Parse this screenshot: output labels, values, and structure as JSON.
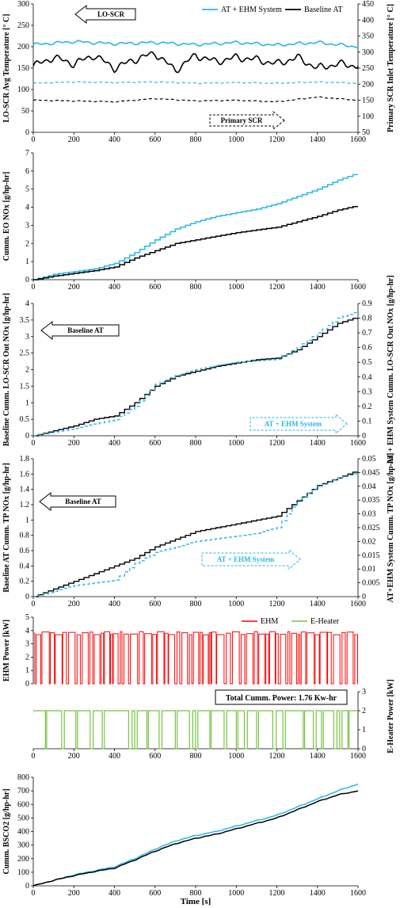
{
  "colors": {
    "cyan": "#29b6e6",
    "black": "#000000",
    "red": "#ff0000",
    "green": "#76c442"
  },
  "chart_data": [
    {
      "type": "line",
      "x_ticks": [
        0,
        200,
        400,
        600,
        800,
        1000,
        1200,
        1400,
        1600
      ],
      "y_ticks": [
        0,
        50,
        100,
        150,
        200,
        250,
        300
      ],
      "y2_ticks": [
        50,
        100,
        150,
        200,
        250,
        300,
        350,
        400,
        450
      ],
      "ylim": [
        0,
        300
      ],
      "y2lim": [
        50,
        450
      ],
      "xlim": [
        0,
        1600
      ],
      "ylabel": "LO-SCR Avg Temperature [° C]",
      "y2label": "Primary SCR Inlet Temperature [° C]",
      "legend": [
        "AT + EHM System",
        "Baseline AT"
      ],
      "annotations": [
        "LO-SCR",
        "Primary SCR"
      ],
      "series": [
        {
          "name": "AT + EHM System",
          "axis": "left",
          "style": "solid",
          "color": "cyan",
          "x": [
            0,
            200,
            400,
            600,
            800,
            1000,
            1200,
            1400,
            1600
          ],
          "y": [
            205,
            212,
            207,
            210,
            205,
            210,
            204,
            210,
            200
          ]
        },
        {
          "name": "Baseline AT",
          "axis": "left",
          "style": "solid",
          "color": "black",
          "x": [
            0,
            100,
            200,
            300,
            400,
            500,
            600,
            700,
            800,
            900,
            1000,
            1100,
            1200,
            1300,
            1400,
            1500,
            1600
          ],
          "y": [
            155,
            175,
            160,
            180,
            150,
            170,
            185,
            145,
            180,
            165,
            175,
            170,
            160,
            175,
            150,
            160,
            155
          ]
        },
        {
          "name": "AT + EHM System",
          "axis": "right",
          "style": "dashed",
          "color": "cyan",
          "x": [
            0,
            200,
            400,
            600,
            800,
            1000,
            1200,
            1400,
            1600
          ],
          "y": [
            203,
            207,
            205,
            207,
            203,
            205,
            203,
            207,
            203
          ]
        },
        {
          "name": "Baseline AT",
          "axis": "right",
          "style": "dashed",
          "color": "black",
          "x": [
            0,
            200,
            400,
            600,
            800,
            1000,
            1200,
            1400,
            1600
          ],
          "y": [
            150,
            148,
            145,
            155,
            148,
            150,
            145,
            160,
            150
          ]
        }
      ]
    },
    {
      "type": "line",
      "x_ticks": [
        0,
        200,
        400,
        600,
        800,
        1000,
        1200,
        1400,
        1600
      ],
      "y_ticks": [
        0,
        1,
        2,
        3,
        4,
        5,
        6,
        7
      ],
      "ylim": [
        0,
        7
      ],
      "xlim": [
        0,
        1600
      ],
      "ylabel": "Cumm. EO NOx [g/hp-hr]",
      "series": [
        {
          "color": "cyan",
          "x": [
            0,
            100,
            200,
            300,
            400,
            500,
            600,
            700,
            800,
            900,
            1000,
            1100,
            1200,
            1300,
            1400,
            1500,
            1600
          ],
          "y": [
            0,
            0.3,
            0.45,
            0.6,
            0.9,
            1.5,
            2.2,
            2.8,
            3.2,
            3.5,
            3.7,
            3.9,
            4.2,
            4.6,
            5.0,
            5.5,
            5.9
          ]
        },
        {
          "color": "black",
          "x": [
            0,
            100,
            200,
            300,
            400,
            500,
            600,
            700,
            800,
            900,
            1000,
            1100,
            1200,
            1300,
            1400,
            1500,
            1600
          ],
          "y": [
            0,
            0.2,
            0.35,
            0.5,
            0.7,
            1.2,
            1.6,
            2.0,
            2.2,
            2.4,
            2.6,
            2.75,
            2.9,
            3.2,
            3.5,
            3.85,
            4.1
          ]
        }
      ]
    },
    {
      "type": "line",
      "x_ticks": [
        0,
        200,
        400,
        600,
        800,
        1000,
        1200,
        1400,
        1600
      ],
      "y_ticks": [
        0,
        0.5,
        1,
        1.5,
        2,
        2.5,
        3,
        3.5,
        4
      ],
      "y2_ticks": [
        0,
        0.1,
        0.2,
        0.3,
        0.4,
        0.5,
        0.6,
        0.7,
        0.8,
        0.9
      ],
      "ylim": [
        0,
        4
      ],
      "y2lim": [
        0,
        0.9
      ],
      "xlim": [
        0,
        1600
      ],
      "ylabel": "Baseline Cumm. LO-SCR Out NOx [g/hp-hr]",
      "y2label": "AT + EHM System Cumm. LO-SCR Out NOx [g/hp-hr]",
      "annotations": [
        "Baseline AT",
        "AT + EHM System"
      ],
      "series": [
        {
          "name": "Baseline AT",
          "axis": "left",
          "style": "solid",
          "color": "black",
          "x": [
            0,
            100,
            200,
            300,
            400,
            500,
            600,
            700,
            800,
            900,
            1000,
            1100,
            1200,
            1300,
            1400,
            1500,
            1600
          ],
          "y": [
            0,
            0.15,
            0.3,
            0.5,
            0.6,
            1.0,
            1.5,
            1.8,
            1.95,
            2.1,
            2.2,
            2.3,
            2.35,
            2.6,
            3.0,
            3.4,
            3.6
          ]
        },
        {
          "name": "AT + EHM System",
          "axis": "right",
          "style": "dashed",
          "color": "cyan",
          "x": [
            0,
            100,
            200,
            300,
            400,
            500,
            600,
            700,
            800,
            900,
            1000,
            1100,
            1200,
            1300,
            1400,
            1500,
            1600
          ],
          "y": [
            0,
            0.025,
            0.05,
            0.08,
            0.11,
            0.2,
            0.35,
            0.41,
            0.45,
            0.48,
            0.5,
            0.51,
            0.52,
            0.6,
            0.7,
            0.8,
            0.85
          ]
        }
      ]
    },
    {
      "type": "line",
      "x_ticks": [
        0,
        200,
        400,
        600,
        800,
        1000,
        1200,
        1400,
        1600
      ],
      "y_ticks": [
        0,
        0.2,
        0.4,
        0.6,
        0.8,
        1,
        1.2,
        1.4,
        1.6,
        1.8
      ],
      "y2_ticks": [
        0,
        0.005,
        0.01,
        0.015,
        0.02,
        0.025,
        0.03,
        0.035,
        0.04,
        0.045,
        0.05
      ],
      "ylim": [
        0,
        1.8
      ],
      "y2lim": [
        0,
        0.05
      ],
      "xlim": [
        0,
        1600
      ],
      "ylabel": "Baseline AT Cumm. TP NOx [g/hp-hr]",
      "y2label": "AT+EHM System Cumm. TP NOx [g/hp-hr]",
      "annotations": [
        "Baseline AT",
        "AT + EHM System"
      ],
      "series": [
        {
          "name": "Baseline AT",
          "axis": "left",
          "style": "solid",
          "color": "black",
          "x": [
            0,
            100,
            200,
            300,
            400,
            500,
            600,
            700,
            800,
            900,
            1000,
            1100,
            1200,
            1300,
            1400,
            1500,
            1600
          ],
          "y": [
            0,
            0.1,
            0.2,
            0.3,
            0.4,
            0.5,
            0.65,
            0.75,
            0.85,
            0.9,
            0.95,
            1.0,
            1.05,
            1.25,
            1.45,
            1.55,
            1.65
          ]
        },
        {
          "name": "AT + EHM System",
          "axis": "right",
          "style": "dashed",
          "color": "cyan",
          "x": [
            0,
            100,
            200,
            300,
            400,
            500,
            600,
            700,
            800,
            900,
            1000,
            1100,
            1200,
            1300,
            1400,
            1500,
            1600
          ],
          "y": [
            0,
            0.002,
            0.004,
            0.005,
            0.006,
            0.012,
            0.016,
            0.018,
            0.02,
            0.021,
            0.022,
            0.023,
            0.025,
            0.035,
            0.04,
            0.043,
            0.045
          ]
        }
      ]
    },
    {
      "type": "line",
      "x_ticks": [
        0,
        200,
        400,
        600,
        800,
        1000,
        1200,
        1400,
        1600
      ],
      "y_ticks": [
        0,
        1,
        2,
        3,
        4,
        5
      ],
      "y2_ticks": [
        0,
        1,
        2,
        3
      ],
      "ylim": [
        0,
        5
      ],
      "y2lim": [
        0,
        3
      ],
      "xlim": [
        0,
        1600
      ],
      "ylabel": "EHM Power [kW]",
      "y2label": "E-Heater Power [kW]",
      "legend": [
        "EHM",
        "E-Heater"
      ],
      "annotation": "Total Cumm. Power: 1.76 Kw-hr",
      "series": [
        {
          "name": "EHM",
          "color": "red",
          "levels": [
            0,
            3.8
          ],
          "segments": 110
        },
        {
          "name": "E-Heater",
          "color": "green",
          "levels": [
            0,
            2
          ],
          "segments": 30
        }
      ]
    },
    {
      "type": "line",
      "x_ticks": [
        0,
        200,
        400,
        600,
        800,
        1000,
        1200,
        1400,
        1600
      ],
      "y_ticks": [
        0,
        100,
        200,
        300,
        400,
        500,
        600,
        700,
        800
      ],
      "ylim": [
        0,
        800
      ],
      "xlim": [
        0,
        1600
      ],
      "ylabel": "Cumm. BSCO2 [g/hp-hr]",
      "xlabel": "Time [s]",
      "series": [
        {
          "color": "cyan",
          "x": [
            0,
            100,
            200,
            300,
            400,
            500,
            600,
            700,
            800,
            900,
            1000,
            1100,
            1200,
            1300,
            1400,
            1500,
            1600
          ],
          "y": [
            0,
            40,
            80,
            110,
            140,
            200,
            270,
            330,
            370,
            400,
            440,
            480,
            520,
            580,
            640,
            700,
            750
          ]
        },
        {
          "color": "black",
          "x": [
            0,
            100,
            200,
            300,
            400,
            500,
            600,
            700,
            800,
            900,
            1000,
            1100,
            1200,
            1300,
            1400,
            1500,
            1600
          ],
          "y": [
            0,
            40,
            75,
            105,
            130,
            190,
            255,
            310,
            350,
            380,
            420,
            460,
            500,
            560,
            620,
            670,
            700
          ]
        }
      ]
    }
  ]
}
